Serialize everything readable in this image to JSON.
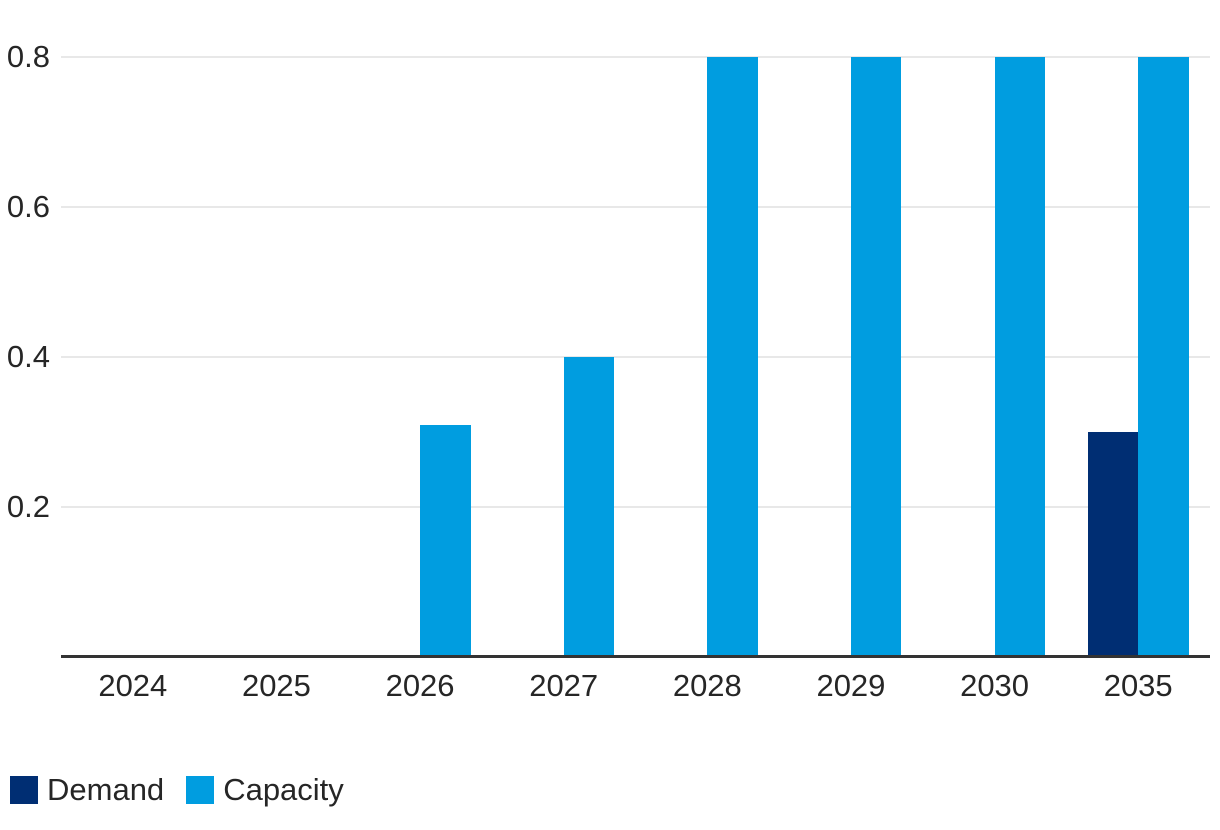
{
  "chart_data": {
    "type": "bar",
    "title": "",
    "categories": [
      "2024",
      "2025",
      "2026",
      "2027",
      "2028",
      "2029",
      "2030",
      "2035"
    ],
    "series": [
      {
        "name": "Demand",
        "color": "#002e73",
        "values": [
          0,
          0,
          0,
          0,
          0,
          0,
          0,
          0.3
        ]
      },
      {
        "name": "Capacity",
        "color": "#009de0",
        "values": [
          0,
          0,
          0.31,
          0.4,
          0.8,
          0.8,
          0.8,
          0.8
        ]
      }
    ],
    "xlabel": "",
    "ylabel": "",
    "ylim": [
      0,
      0.85
    ],
    "yticks": [
      0.2,
      0.4,
      0.6,
      0.8
    ],
    "grid": true,
    "legend_position": "bottom-left",
    "colors": {
      "background": "#ffffff",
      "gridline": "#e8e8e8",
      "axis_line": "#333333",
      "label_text": "#262626"
    }
  }
}
